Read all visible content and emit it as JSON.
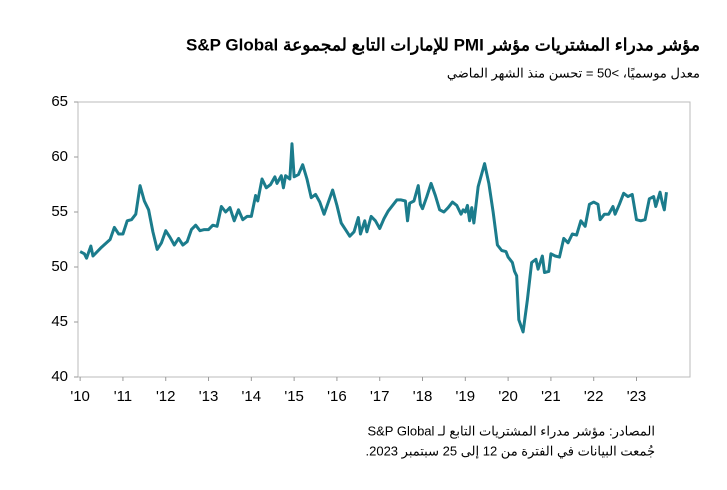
{
  "chart_data": {
    "type": "line",
    "title": "مؤشر مدراء المشتريات مؤشر PMI للإمارات التابع لمجموعة S&P Global",
    "subtitle": "معدل موسميًا، >50 = تحسن منذ الشهر الماضي",
    "source": "المصادر: مؤشر مدراء المشتريات التابع لـ S&P Global",
    "note": "جُمعت البيانات في الفترة من 12 إلى 25 سبتمبر 2023.",
    "x": [
      2010.0,
      2010.1,
      2010.15,
      2010.25,
      2010.3,
      2010.5,
      2010.7,
      2010.8,
      2010.9,
      2011.0,
      2011.1,
      2011.2,
      2011.3,
      2011.4,
      2011.5,
      2011.6,
      2011.7,
      2011.8,
      2011.9,
      2012.0,
      2012.1,
      2012.2,
      2012.3,
      2012.4,
      2012.5,
      2012.6,
      2012.7,
      2012.8,
      2012.9,
      2013.0,
      2013.1,
      2013.2,
      2013.3,
      2013.4,
      2013.5,
      2013.6,
      2013.7,
      2013.8,
      2013.9,
      2014.0,
      2014.1,
      2014.15,
      2014.25,
      2014.35,
      2014.45,
      2014.55,
      2014.6,
      2014.7,
      2014.75,
      2014.8,
      2014.9,
      2014.95,
      2015.0,
      2015.1,
      2015.2,
      2015.3,
      2015.4,
      2015.5,
      2015.6,
      2015.7,
      2015.8,
      2015.9,
      2016.0,
      2016.1,
      2016.2,
      2016.3,
      2016.4,
      2016.5,
      2016.55,
      2016.65,
      2016.7,
      2016.8,
      2016.9,
      2017.0,
      2017.1,
      2017.2,
      2017.3,
      2017.4,
      2017.5,
      2017.6,
      2017.65,
      2017.7,
      2017.8,
      2017.9,
      2017.95,
      2018.0,
      2018.1,
      2018.2,
      2018.3,
      2018.4,
      2018.5,
      2018.6,
      2018.7,
      2018.8,
      2018.9,
      2018.95,
      2019.0,
      2019.05,
      2019.1,
      2019.15,
      2019.2,
      2019.3,
      2019.45,
      2019.55,
      2019.65,
      2019.75,
      2019.85,
      2019.95,
      2020.0,
      2020.1,
      2020.15,
      2020.2,
      2020.25,
      2020.35,
      2020.45,
      2020.55,
      2020.65,
      2020.7,
      2020.8,
      2020.85,
      2020.95,
      2021.0,
      2021.1,
      2021.2,
      2021.3,
      2021.4,
      2021.5,
      2021.6,
      2021.7,
      2021.8,
      2021.9,
      2022.0,
      2022.1,
      2022.15,
      2022.25,
      2022.35,
      2022.45,
      2022.5,
      2022.6,
      2022.7,
      2022.8,
      2022.9,
      2023.0,
      2023.1,
      2023.2,
      2023.3,
      2023.4,
      2023.45,
      2023.55,
      2023.6,
      2023.65,
      2023.7
    ],
    "series": [
      {
        "color": "#1b7c8c",
        "values": [
          51.4,
          51.2,
          50.8,
          51.9,
          51.0,
          51.8,
          52.5,
          53.6,
          53.0,
          53.0,
          54.2,
          54.3,
          54.8,
          57.4,
          56.0,
          55.2,
          53.2,
          51.6,
          52.2,
          53.3,
          52.7,
          52.0,
          52.6,
          52.0,
          52.3,
          53.4,
          53.8,
          53.3,
          53.4,
          53.4,
          53.8,
          53.7,
          55.5,
          55.0,
          55.4,
          54.2,
          55.2,
          54.3,
          54.6,
          54.6,
          56.5,
          56.0,
          58.0,
          57.2,
          57.5,
          58.2,
          57.6,
          58.3,
          57.2,
          58.3,
          58.0,
          61.2,
          58.2,
          58.4,
          59.3,
          58.0,
          56.3,
          56.6,
          55.9,
          54.8,
          55.9,
          57.0,
          55.6,
          54.0,
          53.4,
          52.8,
          53.2,
          54.5,
          53.0,
          54.2,
          53.2,
          54.6,
          54.2,
          53.5,
          54.4,
          55.1,
          55.6,
          56.1,
          56.1,
          56.0,
          54.2,
          55.8,
          56.0,
          57.4,
          55.7,
          55.3,
          56.4,
          57.6,
          56.5,
          55.2,
          55.0,
          55.4,
          55.9,
          55.6,
          54.8,
          55.2,
          55.0,
          55.6,
          54.2,
          55.4,
          54.0,
          57.3,
          59.4,
          57.6,
          55.0,
          52.0,
          51.5,
          51.4,
          50.9,
          50.4,
          49.6,
          49.2,
          45.2,
          44.1,
          47.0,
          50.4,
          50.7,
          49.8,
          51.0,
          49.5,
          49.6,
          51.2,
          51.0,
          50.9,
          52.6,
          52.2,
          53.0,
          52.9,
          54.2,
          53.7,
          55.7,
          55.9,
          55.7,
          54.3,
          54.8,
          54.8,
          55.5,
          54.8,
          55.7,
          56.7,
          56.4,
          56.6,
          54.3,
          54.2,
          54.3,
          56.2,
          56.4,
          55.5,
          56.8,
          55.9,
          55.2,
          56.8
        ]
      }
    ],
    "xlim": [
      2009.95,
      2024.25
    ],
    "xticks": [
      {
        "value": 2010,
        "label": "'10"
      },
      {
        "value": 2011,
        "label": "'11"
      },
      {
        "value": 2012,
        "label": "'12"
      },
      {
        "value": 2013,
        "label": "'13"
      },
      {
        "value": 2014,
        "label": "'14"
      },
      {
        "value": 2015,
        "label": "'15"
      },
      {
        "value": 2016,
        "label": "'16"
      },
      {
        "value": 2017,
        "label": "'17"
      },
      {
        "value": 2018,
        "label": "'18"
      },
      {
        "value": 2019,
        "label": "'19"
      },
      {
        "value": 2020,
        "label": "'20"
      },
      {
        "value": 2021,
        "label": "'21"
      },
      {
        "value": 2022,
        "label": "'22"
      },
      {
        "value": 2023,
        "label": "'23"
      }
    ],
    "ylim": [
      40,
      65
    ],
    "yticks": [
      40,
      45,
      50,
      55,
      60,
      65
    ]
  }
}
